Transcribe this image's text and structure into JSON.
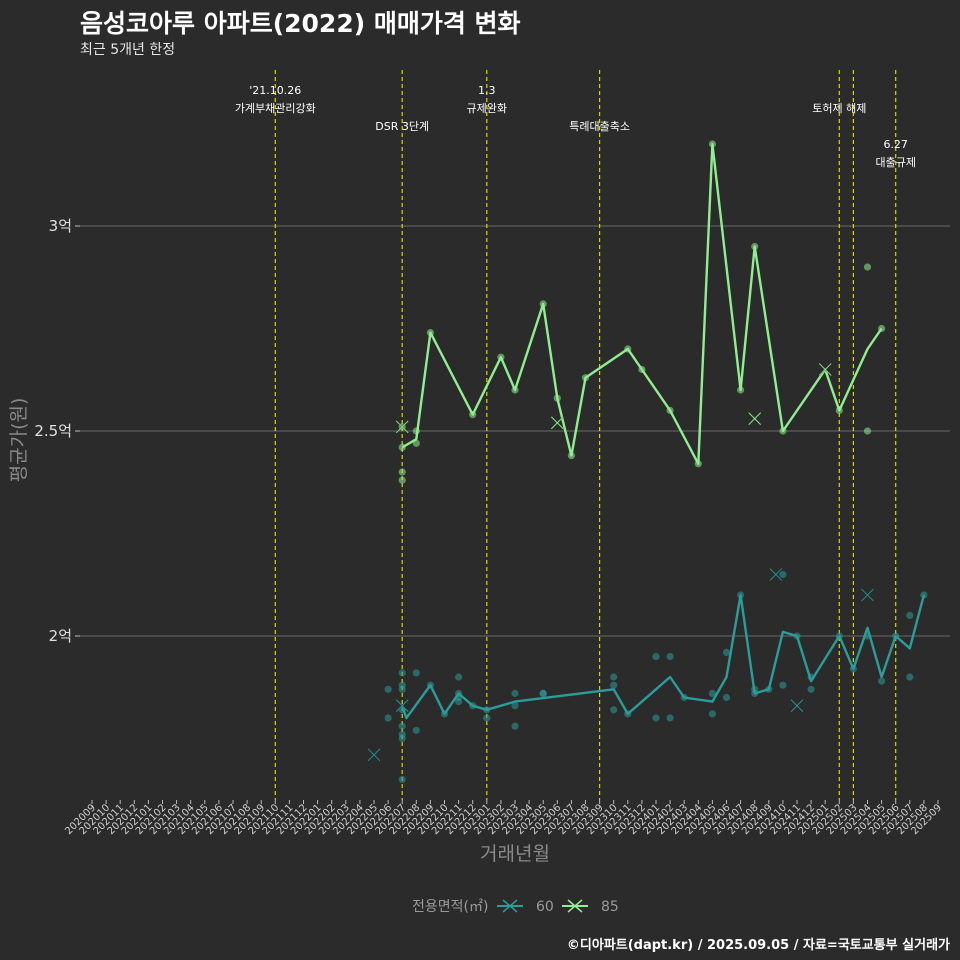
{
  "header": {
    "title": "음성코아루 아파트(2022) 매매가격 변화",
    "subtitle": "최근 5개년 한정"
  },
  "caption": "©디아파트(dapt.kr) / 2025.09.05 / 자료=국토교통부 실거래가",
  "chart_data": {
    "type": "line",
    "title": "음성코아루 아파트(2022) 매매가격 변화",
    "xlabel": "거래년월",
    "ylabel": "평균가(원)",
    "ylim": [
      1.6,
      3.4
    ],
    "y_ticks": [
      {
        "value": 2.0,
        "label": "2억"
      },
      {
        "value": 2.5,
        "label": "2.5억"
      },
      {
        "value": 3.0,
        "label": "3억"
      }
    ],
    "categories": [
      "202009",
      "202010",
      "202011",
      "202012",
      "202101",
      "202102",
      "202103",
      "202104",
      "202105",
      "202106",
      "202107",
      "202108",
      "202109",
      "202110",
      "202111",
      "202112",
      "202201",
      "202202",
      "202203",
      "202204",
      "202205",
      "202206",
      "202207",
      "202208",
      "202209",
      "202210",
      "202211",
      "202212",
      "202301",
      "202302",
      "202303",
      "202304",
      "202305",
      "202306",
      "202307",
      "202308",
      "202309",
      "202310",
      "202311",
      "202312",
      "202401",
      "202402",
      "202403",
      "202404",
      "202405",
      "202406",
      "202407",
      "202408",
      "202409",
      "202410",
      "202411",
      "202412",
      "202501",
      "202502",
      "202503",
      "202504",
      "202505",
      "202506",
      "202507",
      "202508",
      "202509"
    ],
    "legend": {
      "title": "전용면적(㎡)",
      "position": "bottom"
    },
    "events": [
      {
        "x": 13,
        "line1": "'21.10.26",
        "line2": "가계부채관리강화",
        "row": 0
      },
      {
        "x": 22,
        "line1": "DSR 3단계",
        "line2": "",
        "row": 1
      },
      {
        "x": 28,
        "line1": "1.3",
        "line2": "규제완화",
        "row": 0
      },
      {
        "x": 36,
        "line1": "특례대출축소",
        "line2": "",
        "row": 1
      },
      {
        "x": 53,
        "line1": "토허제 해제",
        "line2": "",
        "row": 0.5
      },
      {
        "x": 54,
        "line1": "",
        "line2": "",
        "row": 0
      },
      {
        "x": 57,
        "line1": "6.27",
        "line2": "대출규제",
        "row": 1.5
      }
    ],
    "series": [
      {
        "name": "60",
        "color": "#2a9d9a",
        "line": [
          [
            22,
            1.83
          ],
          [
            22.3,
            1.8
          ],
          [
            24,
            1.88
          ],
          [
            25,
            1.81
          ],
          [
            26,
            1.86
          ],
          [
            27,
            1.83
          ],
          [
            28,
            1.82
          ],
          [
            30,
            1.84
          ],
          [
            37,
            1.87
          ],
          [
            38,
            1.81
          ],
          [
            40,
            1.87
          ],
          [
            41,
            1.9
          ],
          [
            42,
            1.85
          ],
          [
            44,
            1.84
          ],
          [
            45,
            1.9
          ],
          [
            46,
            2.1
          ],
          [
            47,
            1.86
          ],
          [
            48,
            1.87
          ],
          [
            49,
            2.01
          ],
          [
            50,
            2.0
          ],
          [
            51,
            1.89
          ],
          [
            53,
            2.0
          ],
          [
            54,
            1.92
          ],
          [
            55,
            2.02
          ],
          [
            56,
            1.9
          ],
          [
            57,
            2.0
          ],
          [
            58,
            1.97
          ],
          [
            59,
            2.1
          ]
        ],
        "points": [
          [
            21,
            1.8
          ],
          [
            21,
            1.87
          ],
          [
            22,
            1.91
          ],
          [
            22,
            1.88
          ],
          [
            22,
            1.87
          ],
          [
            22,
            1.82
          ],
          [
            22,
            1.78
          ],
          [
            22,
            1.76
          ],
          [
            22,
            1.75
          ],
          [
            22,
            1.65
          ],
          [
            23,
            1.91
          ],
          [
            23,
            1.77
          ],
          [
            24,
            1.88
          ],
          [
            25,
            1.81
          ],
          [
            26,
            1.9
          ],
          [
            26,
            1.86
          ],
          [
            26,
            1.85
          ],
          [
            26,
            1.84
          ],
          [
            27,
            1.83
          ],
          [
            28,
            1.82
          ],
          [
            28,
            1.8
          ],
          [
            30,
            1.86
          ],
          [
            30,
            1.83
          ],
          [
            30,
            1.78
          ],
          [
            32,
            1.86
          ],
          [
            32,
            1.86
          ],
          [
            37,
            1.9
          ],
          [
            37,
            1.88
          ],
          [
            37,
            1.82
          ],
          [
            38,
            1.81
          ],
          [
            40,
            1.95
          ],
          [
            40,
            1.8
          ],
          [
            41,
            1.95
          ],
          [
            41,
            1.8
          ],
          [
            42,
            1.85
          ],
          [
            44,
            1.81
          ],
          [
            44,
            1.86
          ],
          [
            45,
            1.96
          ],
          [
            45,
            1.85
          ],
          [
            46,
            2.1
          ],
          [
            47,
            1.86
          ],
          [
            47,
            1.87
          ],
          [
            48,
            1.87
          ],
          [
            49,
            2.15
          ],
          [
            49,
            1.88
          ],
          [
            50,
            2.0
          ],
          [
            51,
            1.9
          ],
          [
            51,
            1.87
          ],
          [
            53,
            2.0
          ],
          [
            54,
            1.92
          ],
          [
            55,
            2.0
          ],
          [
            56,
            1.89
          ],
          [
            57,
            2.0
          ],
          [
            58,
            2.05
          ],
          [
            58,
            1.9
          ],
          [
            59,
            2.1
          ]
        ],
        "crosses": [
          [
            20,
            1.71
          ],
          [
            22,
            1.83
          ],
          [
            48.5,
            2.15
          ],
          [
            50,
            1.83
          ],
          [
            55,
            2.1
          ]
        ]
      },
      {
        "name": "85",
        "color": "#90ee90",
        "line": [
          [
            22,
            2.46
          ],
          [
            23,
            2.48
          ],
          [
            24,
            2.74
          ],
          [
            27,
            2.54
          ],
          [
            29,
            2.68
          ],
          [
            30,
            2.6
          ],
          [
            32,
            2.81
          ],
          [
            33,
            2.58
          ],
          [
            34,
            2.44
          ],
          [
            35,
            2.63
          ],
          [
            38,
            2.7
          ],
          [
            39,
            2.65
          ],
          [
            41,
            2.55
          ],
          [
            43,
            2.42
          ],
          [
            44,
            3.2
          ],
          [
            46,
            2.6
          ],
          [
            47,
            2.95
          ],
          [
            49,
            2.5
          ],
          [
            52,
            2.65
          ],
          [
            53,
            2.55
          ],
          [
            55,
            2.7
          ],
          [
            56,
            2.75
          ]
        ],
        "points": [
          [
            22,
            2.51
          ],
          [
            22,
            2.46
          ],
          [
            22,
            2.4
          ],
          [
            22,
            2.38
          ],
          [
            23,
            2.5
          ],
          [
            23,
            2.47
          ],
          [
            24,
            2.74
          ],
          [
            27,
            2.54
          ],
          [
            29,
            2.68
          ],
          [
            30,
            2.6
          ],
          [
            32,
            2.81
          ],
          [
            33,
            2.58
          ],
          [
            34,
            2.44
          ],
          [
            35,
            2.63
          ],
          [
            38,
            2.7
          ],
          [
            39,
            2.65
          ],
          [
            41,
            2.55
          ],
          [
            43,
            2.42
          ],
          [
            44,
            3.2
          ],
          [
            46,
            2.6
          ],
          [
            47,
            2.95
          ],
          [
            49,
            2.5
          ],
          [
            53,
            2.55
          ],
          [
            55,
            2.9
          ],
          [
            55,
            2.5
          ],
          [
            56,
            2.75
          ]
        ],
        "crosses": [
          [
            22,
            2.51
          ],
          [
            33,
            2.52
          ],
          [
            47,
            2.53
          ],
          [
            52,
            2.65
          ]
        ]
      }
    ]
  }
}
